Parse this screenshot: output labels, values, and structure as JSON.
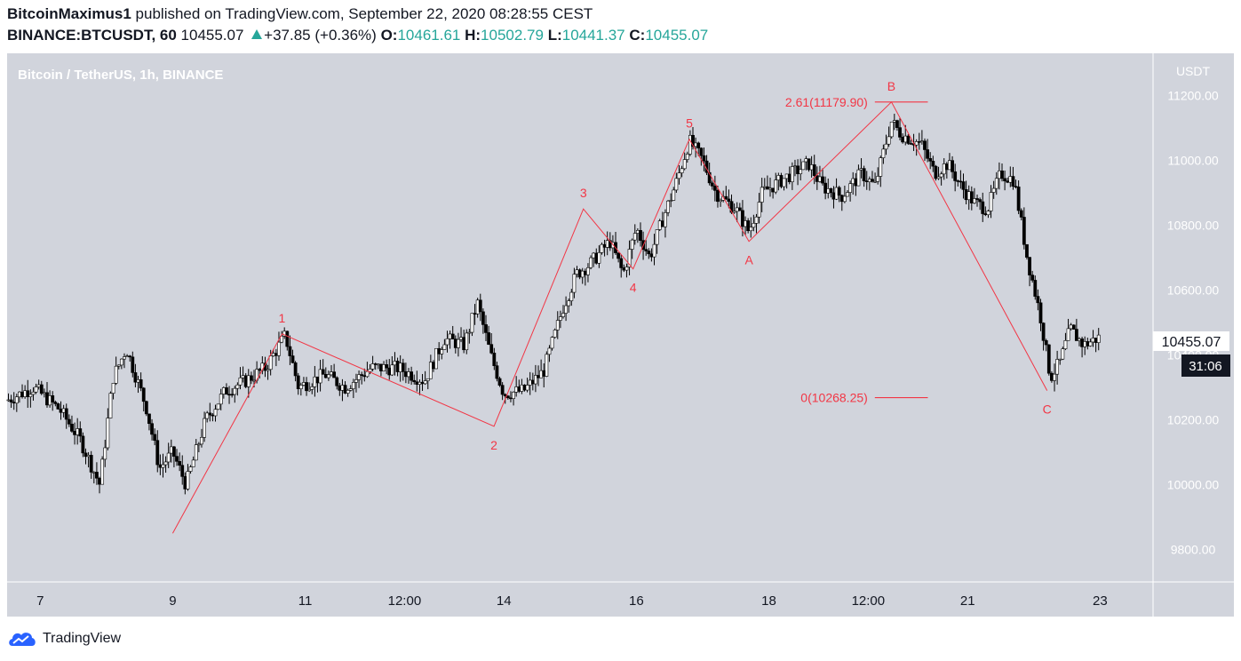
{
  "header": {
    "author": "BitcoinMaximus1",
    "published": "published on TradingView.com, September 22, 2020 08:28:55 CEST",
    "symbol": "BINANCE:BTCUSDT, 60",
    "last": "10455.07",
    "change": "+37.85 (+0.36%)",
    "o_label": "O:",
    "o_value": "10461.61",
    "h_label": "H:",
    "h_value": "10502.79",
    "l_label": "L:",
    "l_value": "10441.37",
    "c_label": "C:",
    "c_value": "10455.07"
  },
  "footer": {
    "brand": "TradingView",
    "logo_icon": "tradingview-cloud-icon"
  },
  "colors": {
    "chart_bg": "#d1d4dc",
    "candle": "#000000",
    "wave": "#f23645",
    "accent_up": "#26a69a"
  },
  "chart_data": {
    "type": "candlestick",
    "title": "Bitcoin / TetherUS, 1h, BINANCE",
    "currency": "USDT",
    "ylim": [
      9700,
      11330
    ],
    "y_ticks": [
      9800,
      10000,
      10200,
      10400,
      10600,
      10800,
      11000,
      11200
    ],
    "y_tick_labels": [
      "9800.00",
      "10000.00",
      "10200.00",
      "10400.00",
      "10600.00",
      "10800.00",
      "11000.00",
      "11200.00"
    ],
    "x_range": [
      6.5,
      23.8
    ],
    "x_ticks": [
      {
        "t": 7,
        "label": "7"
      },
      {
        "t": 9,
        "label": "9"
      },
      {
        "t": 11,
        "label": "11"
      },
      {
        "t": 12.5,
        "label": "12:00"
      },
      {
        "t": 14,
        "label": "14"
      },
      {
        "t": 16,
        "label": "16"
      },
      {
        "t": 18,
        "label": "18"
      },
      {
        "t": 19.5,
        "label": "12:00"
      },
      {
        "t": 21,
        "label": "21"
      },
      {
        "t": 23,
        "label": "23"
      }
    ],
    "price_badge": "10455.07",
    "countdown": "31:06",
    "price_anchors": [
      [
        6.5,
        10260
      ],
      [
        6.9,
        10300
      ],
      [
        7.3,
        10230
      ],
      [
        7.6,
        10140
      ],
      [
        7.9,
        10000
      ],
      [
        8.1,
        10330
      ],
      [
        8.3,
        10420
      ],
      [
        8.6,
        10240
      ],
      [
        8.8,
        10050
      ],
      [
        9.0,
        10100
      ],
      [
        9.2,
        10000
      ],
      [
        9.5,
        10200
      ],
      [
        9.8,
        10290
      ],
      [
        10.1,
        10320
      ],
      [
        10.4,
        10360
      ],
      [
        10.7,
        10460
      ],
      [
        10.9,
        10300
      ],
      [
        11.3,
        10340
      ],
      [
        11.6,
        10300
      ],
      [
        12.0,
        10360
      ],
      [
        12.4,
        10360
      ],
      [
        12.8,
        10320
      ],
      [
        13.1,
        10450
      ],
      [
        13.4,
        10430
      ],
      [
        13.6,
        10560
      ],
      [
        13.8,
        10400
      ],
      [
        14.0,
        10280
      ],
      [
        14.3,
        10290
      ],
      [
        14.6,
        10350
      ],
      [
        14.9,
        10550
      ],
      [
        15.1,
        10650
      ],
      [
        15.3,
        10680
      ],
      [
        15.6,
        10750
      ],
      [
        15.8,
        10650
      ],
      [
        16.0,
        10790
      ],
      [
        16.2,
        10700
      ],
      [
        16.4,
        10820
      ],
      [
        16.6,
        10930
      ],
      [
        16.8,
        11060
      ],
      [
        17.0,
        11000
      ],
      [
        17.2,
        10900
      ],
      [
        17.5,
        10850
      ],
      [
        17.7,
        10780
      ],
      [
        17.9,
        10900
      ],
      [
        18.2,
        10940
      ],
      [
        18.6,
        10990
      ],
      [
        18.8,
        10920
      ],
      [
        19.1,
        10890
      ],
      [
        19.4,
        10960
      ],
      [
        19.6,
        10920
      ],
      [
        19.85,
        11120
      ],
      [
        20.0,
        11080
      ],
      [
        20.3,
        11050
      ],
      [
        20.5,
        10960
      ],
      [
        20.7,
        10990
      ],
      [
        20.9,
        10920
      ],
      [
        21.1,
        10870
      ],
      [
        21.3,
        10850
      ],
      [
        21.5,
        10960
      ],
      [
        21.7,
        10940
      ],
      [
        21.9,
        10700
      ],
      [
        22.1,
        10520
      ],
      [
        22.25,
        10330
      ],
      [
        22.4,
        10380
      ],
      [
        22.55,
        10480
      ],
      [
        22.75,
        10430
      ],
      [
        23.0,
        10455
      ]
    ],
    "annotations": {
      "wave_labels": [
        "1",
        "2",
        "3",
        "4",
        "5",
        "A",
        "B",
        "C"
      ],
      "fib_top": "2.61(11179.90)",
      "fib_bottom": "0(10268.25)"
    },
    "wave_points": [
      {
        "label": "",
        "t": 9.0,
        "y": 9850
      },
      {
        "label": "1",
        "t": 10.65,
        "y": 10465
      },
      {
        "label": "2",
        "t": 13.85,
        "y": 10180
      },
      {
        "label": "3",
        "t": 15.2,
        "y": 10850
      },
      {
        "label": "4",
        "t": 15.95,
        "y": 10665
      },
      {
        "label": "5",
        "t": 16.8,
        "y": 11065
      },
      {
        "label": "A",
        "t": 17.7,
        "y": 10750
      },
      {
        "label": "B",
        "t": 19.85,
        "y": 11180
      },
      {
        "label": "C",
        "t": 22.2,
        "y": 10290
      }
    ],
    "fib_levels": [
      {
        "label": "2.61(11179.90)",
        "value": 11179.9
      },
      {
        "label": "0(10268.25)",
        "value": 10268.25
      }
    ]
  }
}
